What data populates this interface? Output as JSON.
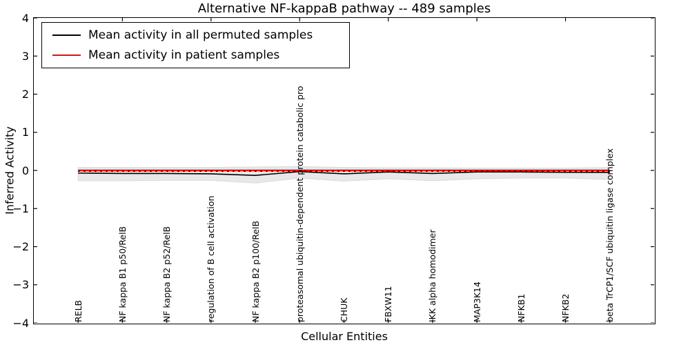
{
  "title": "Alternative NF-kappaB pathway -- 489 samples",
  "ylabel": "Inferred Activity",
  "xlabel": "Cellular Entities",
  "legend": {
    "position": "upper left",
    "entries": [
      {
        "label": "Mean activity in all permuted samples",
        "color": "#000000"
      },
      {
        "label": "Mean activity in patient samples",
        "color": "#ff0000"
      }
    ]
  },
  "colors": {
    "permuted_line": "#000000",
    "patient_line": "#ff0000",
    "band_fill": "#e8e8e8",
    "band_edge": "#d9d9d9",
    "axis": "#000000",
    "background": "#ffffff"
  },
  "chart_data": {
    "type": "line",
    "title": "Alternative NF-kappaB pathway -- 489 samples",
    "xlabel": "Cellular Entities",
    "ylabel": "Inferred Activity",
    "ylim": [
      -4,
      4
    ],
    "yticks": [
      4,
      3,
      2,
      1,
      0,
      -1,
      -2,
      -3,
      -4
    ],
    "grid": false,
    "legend_position": "upper left",
    "categories": [
      "RELB",
      "NF kappa B1 p50/RelB",
      "NF kappa B2 p52/RelB",
      "regulation of B cell activation",
      "NF kappa B2 p100/RelB",
      "proteasomal ubiquitin-dependent protein catabolic pro",
      "CHUK",
      "FBXW11",
      "IKK alpha homodimer",
      "MAP3K14",
      "NFKB1",
      "NFKB2",
      "beta TrCP1/SCF ubiquitin ligase complex"
    ],
    "series": [
      {
        "name": "Mean activity in all permuted samples",
        "color": "#000000",
        "style": "solid",
        "values": [
          -0.07,
          -0.08,
          -0.08,
          -0.09,
          -0.13,
          -0.03,
          -0.09,
          -0.04,
          -0.08,
          -0.04,
          -0.04,
          -0.05,
          -0.05
        ]
      },
      {
        "name": "Mean activity in patient samples",
        "color": "#ff0000",
        "style": "solid",
        "values": [
          0.0,
          0.0,
          0.0,
          0.0,
          0.0,
          0.0,
          0.0,
          0.0,
          0.0,
          0.0,
          0.0,
          0.0,
          0.0
        ]
      }
    ],
    "dotted_overlay": {
      "color": "#000000",
      "style": "dotted",
      "value": -0.02
    },
    "band": {
      "color": "#e8e8e8",
      "upper": [
        0.08,
        0.08,
        0.08,
        0.08,
        0.09,
        0.1,
        0.08,
        0.07,
        0.07,
        0.06,
        0.06,
        0.06,
        0.08
      ],
      "lower": [
        -0.27,
        -0.27,
        -0.26,
        -0.26,
        -0.33,
        -0.2,
        -0.28,
        -0.22,
        -0.27,
        -0.22,
        -0.2,
        -0.2,
        -0.24
      ]
    }
  }
}
